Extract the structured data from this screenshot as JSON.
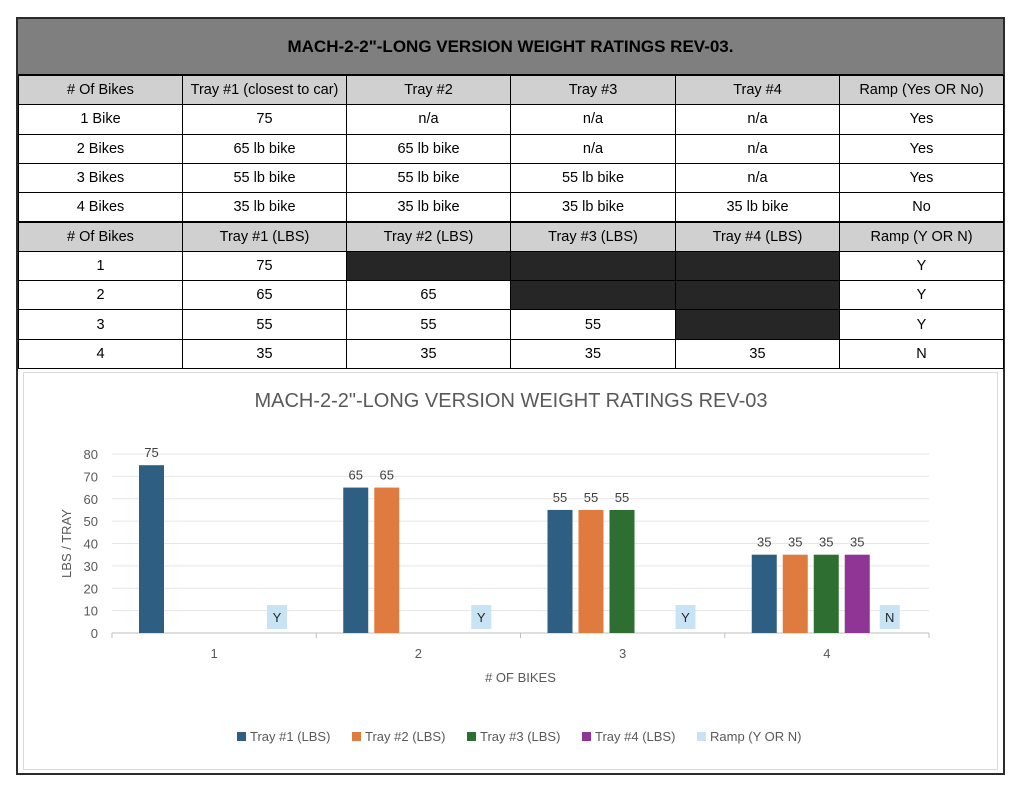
{
  "title": "MACH-2-2\"-LONG VERSION WEIGHT RATINGS REV-03.",
  "table1": {
    "headers": [
      "# Of Bikes",
      "Tray #1 (closest to car)",
      "Tray #2",
      "Tray #3",
      "Tray #4",
      "Ramp (Yes OR No)"
    ],
    "rows": [
      [
        "1 Bike",
        "75",
        "n/a",
        "n/a",
        "n/a",
        "Yes"
      ],
      [
        "2 Bikes",
        "65 lb bike",
        "65 lb bike",
        "n/a",
        "n/a",
        "Yes"
      ],
      [
        "3 Bikes",
        "55 lb bike",
        "55 lb bike",
        "55 lb bike",
        "n/a",
        "Yes"
      ],
      [
        "4 Bikes",
        "35 lb bike",
        "35 lb bike",
        "35 lb bike",
        "35 lb bike",
        "No"
      ]
    ]
  },
  "table2": {
    "headers": [
      "# Of Bikes",
      "Tray #1 (LBS)",
      "Tray #2 (LBS)",
      "Tray #3 (LBS)",
      "Tray #4 (LBS)",
      "Ramp (Y OR N)"
    ],
    "rows": [
      [
        "1",
        "75",
        "",
        "",
        "",
        "Y"
      ],
      [
        "2",
        "65",
        "65",
        "",
        "",
        "Y"
      ],
      [
        "3",
        "55",
        "55",
        "55",
        "",
        "Y"
      ],
      [
        "4",
        "35",
        "35",
        "35",
        "35",
        "N"
      ]
    ]
  },
  "chart_data": {
    "type": "bar",
    "title": "MACH-2-2\"-LONG VERSION WEIGHT RATINGS REV-03",
    "xlabel": "# OF BIKES",
    "ylabel": "LBS / TRAY",
    "categories": [
      "1",
      "2",
      "3",
      "4"
    ],
    "ylim": [
      0,
      80
    ],
    "yticks": [
      0,
      10,
      20,
      30,
      40,
      50,
      60,
      70,
      80
    ],
    "grid": true,
    "legend_position": "bottom",
    "series": [
      {
        "name": "Tray #1 (LBS)",
        "color": "#2e5f82",
        "values": [
          75,
          65,
          55,
          35
        ]
      },
      {
        "name": "Tray #2 (LBS)",
        "color": "#e07b3f",
        "values": [
          null,
          65,
          55,
          35
        ]
      },
      {
        "name": "Tray #3 (LBS)",
        "color": "#2f6e31",
        "values": [
          null,
          null,
          55,
          35
        ]
      },
      {
        "name": "Tray #4 (LBS)",
        "color": "#8e3595",
        "values": [
          null,
          null,
          null,
          35
        ]
      }
    ],
    "ramp_series": {
      "name": "Ramp (Y OR N)",
      "color": "#c8e4f4",
      "labels": [
        "Y",
        "Y",
        "Y",
        "N"
      ]
    }
  }
}
